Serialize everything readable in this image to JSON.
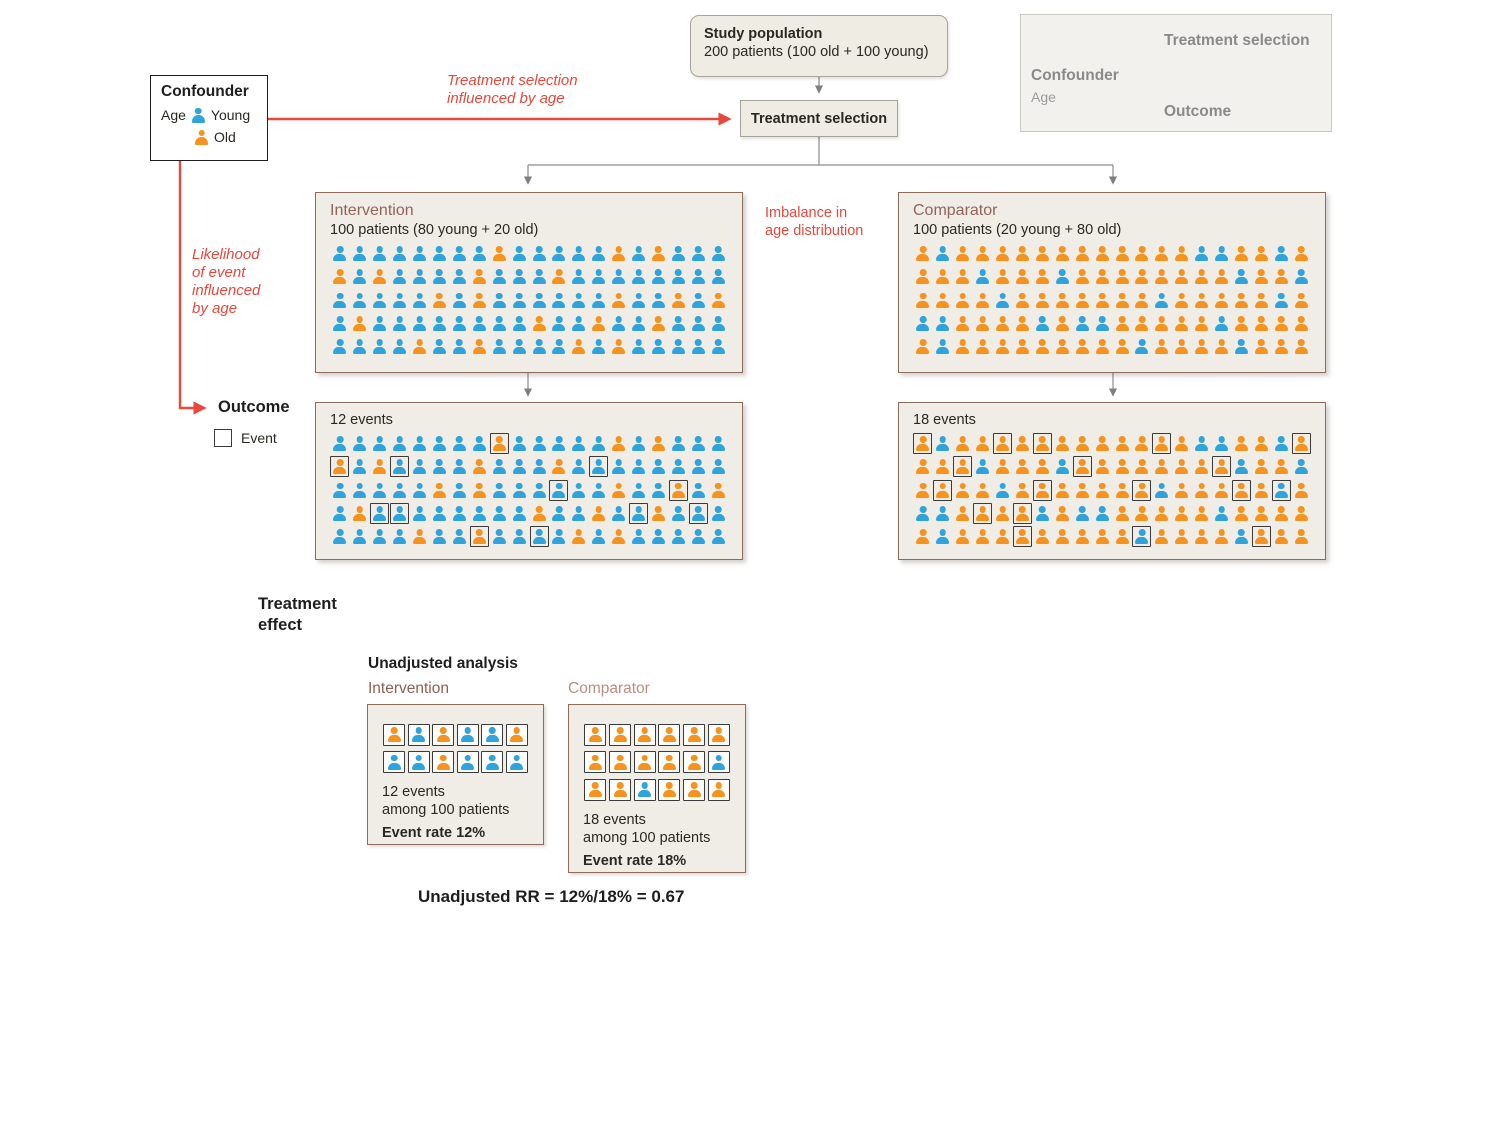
{
  "palette": {
    "young_blue": "#2ea3dc",
    "old_orange": "#f6921e",
    "annotation_red": "#e8473c",
    "box_fill": "#f0ede6",
    "box_border_brown": "#8e6c5c",
    "box_fill_gray": "#efece3",
    "heading_brown": "#93655a"
  },
  "confounder_box": {
    "title": "Confounder",
    "age_label": "Age",
    "young_label": "Young",
    "old_label": "Old"
  },
  "study_population": {
    "title": "Study population",
    "subtitle": "200 patients (100 old + 100 young)"
  },
  "treatment_selection": {
    "label": "Treatment selection"
  },
  "annotations": {
    "treatment_influenced": [
      "Treatment selection",
      "influenced by age"
    ],
    "imbalance": [
      "Imbalance in",
      "age distribution"
    ],
    "likelihood": [
      "Likelihood",
      "of event",
      "influenced",
      "by age"
    ]
  },
  "inset": {
    "confounder": "Confounder",
    "age": "Age",
    "treatment": "Treatment selection",
    "outcome": "Outcome"
  },
  "intervention": {
    "title": "Intervention",
    "subtitle": "100 patients (80 young + 20 old)",
    "grid": [
      "yyyyyyyyoyyyyyoyoyyy",
      "oyoyyyyoyyyoyyyyyyyy",
      "yyyyyoyoyyyyyyoyyoyo",
      "yoyyyyyyyyoyyoyyoyyy",
      "yyyyoyyoyyyyoyoyyyyy"
    ]
  },
  "comparator": {
    "title": "Comparator",
    "subtitle": "100 patients (20 young + 80 old)",
    "grid": [
      "oyooooooooooooyyooyo",
      "oooyoooyooooooooyooy",
      "ooooyoooooooyoooooyo",
      "yyooooyoyyoooooyoooo",
      "oyoooooooooyooooyooo"
    ]
  },
  "outcome": {
    "label": "Outcome",
    "event_legend": "Event",
    "intervention_events": {
      "title": "12 events",
      "grid": [
        "yyyyyyyyOyyyyyoyoyyy",
        "OyoYyyyoyyyoyYyyyyyy",
        "yyyyyoyoyyyYyyoyyOyo",
        "yoYYyyyyyyoyyoyYoyYy",
        "yyyyoyyOyyYyoyoyyyyy"
      ]
    },
    "comparator_events": {
      "title": "18 events",
      "grid": [
        "OyooOoOoooooOoyyooyO",
        "ooOyoooyOooooooOyooy",
        "oOooyoOooooOyoooOoYo",
        "yyoOoOyoyyoooooyoooo",
        "oyoooOoooooYooooyOoo"
      ]
    }
  },
  "treatment_effect": {
    "heading": [
      "Treatment",
      "effect"
    ],
    "analysis_title": "Unadjusted analysis",
    "intervention": {
      "label": "Intervention",
      "grid": [
        "OYOYYO",
        "YYOYYY"
      ],
      "line1": "12 events",
      "line2": "among 100 patients",
      "rate": "Event rate 12%"
    },
    "comparator": {
      "label": "Comparator",
      "grid": [
        "OOOOOO",
        "OOOOOY",
        "OOYOOO"
      ],
      "line1": "18 events",
      "line2": "among 100 patients",
      "rate": "Event rate 18%"
    },
    "rr": "Unadjusted RR = 12%/18% = 0.67"
  }
}
